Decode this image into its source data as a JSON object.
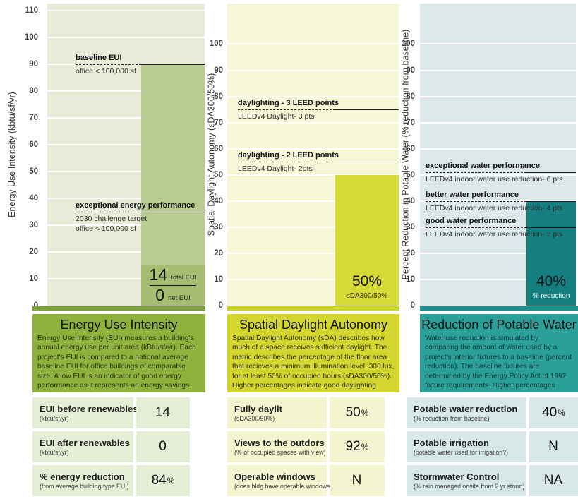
{
  "chart_data": [
    {
      "type": "bar",
      "title": "Energy Use Intensity",
      "description": "Energy Use Intensity (EUI) measures a building's annual energy use per unit area (kBtu/sf/yr).  Each project's EUI is compared to a national average baseline EUI for office buildings of comparable size. A low EUI is an indicator of good energy performance as it represents an energy savings against the baseline.",
      "ylabel": "Energy Use Intensity (kbtu/sf/yr)",
      "ylim": [
        0,
        110
      ],
      "tick_step": 10,
      "y_effective_max": 112.5,
      "grid": true,
      "bar": {
        "value": 90,
        "fraction_top": 15,
        "fraction": [
          {
            "num": "14",
            "unit": "total EUI"
          },
          {
            "num": "0",
            "unit": "net EUI"
          }
        ]
      },
      "reference_lines": [
        {
          "value": 90,
          "label": "baseline EUI",
          "sublabels": [
            "office < 100,000 sf"
          ]
        },
        {
          "value": 35,
          "label": "exceptional energy performance",
          "sublabels": [
            "2030 challenge target",
            "office < 100,000 sf"
          ]
        }
      ],
      "table": [
        {
          "label": "EUI before renewables",
          "sublabel": "(kbtu/sf/yr)",
          "value": "14",
          "suffix": ""
        },
        {
          "label": "EUI after renewables",
          "sublabel": "(kbtu/sf/yr)",
          "value": "0",
          "suffix": ""
        },
        {
          "label": "% energy reduction",
          "sublabel": "(from average building type EUI)",
          "value": "84",
          "suffix": "%"
        }
      ],
      "colors": {
        "plot_bg": "#e8ebd8",
        "grid": "#ffffff",
        "bar": "#b9cb90",
        "bar_box": "#a6bd72",
        "axis_strip": "#7ba23a",
        "title_bg": "#8fb23d",
        "title_text": "#121212",
        "body_text": "#2a330f",
        "table_bg": "#e5eed5"
      }
    },
    {
      "type": "bar",
      "title": "Spatial Daylight Autonomy",
      "description": "Spatial Daylight Autonomy (sDA) describes how much of a space receives sufficient daylight.  The metric describes the percentage of the floor area that recieves a minimum illumination level, 300 lux, for at least 50% of occupied hours (sDA300/50%).  Higher percentages indicate good daylighting performance.",
      "ylabel": "Spatial Daylight Autonomy (sDA300/50%)",
      "ylim": [
        0,
        100
      ],
      "tick_step": 10,
      "y_effective_max": 115.5,
      "grid": true,
      "bar": {
        "value": 50,
        "caption_big": "50%",
        "caption_small": "sDA300/50%"
      },
      "reference_lines": [
        {
          "value": 75,
          "label": "daylighting - 3 LEED points",
          "sublabels": [
            "LEEDv4 Daylight- 3 pts"
          ]
        },
        {
          "value": 55,
          "label": "daylighting - 2 LEED points",
          "sublabels": [
            "LEEDv4 Daylight- 2pts"
          ]
        }
      ],
      "table": [
        {
          "label": "Fully daylit",
          "sublabel": "(sDA300/50%)",
          "value": "50",
          "suffix": "%"
        },
        {
          "label": "Views to the outdors",
          "sublabel": "(% of occupied spaces with view)",
          "value": "92",
          "suffix": "%"
        },
        {
          "label": "Operable windows",
          "sublabel": "(does bldg have operable windows?)",
          "value": "N",
          "suffix": ""
        }
      ],
      "colors": {
        "plot_bg": "#f6f7d7",
        "grid": "#ffffff",
        "bar": "#d6da34",
        "axis_strip": "#ccd42c",
        "title_bg": "#d4d630",
        "title_text": "#121212",
        "body_text": "#2f330c",
        "table_bg": "#f3f5cf",
        "caption_small_color": "#33330f"
      }
    },
    {
      "type": "bar",
      "title": "Reduction of Potable Water",
      "description": "Water use reduction is simulated by comparing the amount of water used by a project's interior fixtures to a baseline (percent reduction).  The baseline fixtures are determined by the Energy Policy Act of 1992 fixture requirements.  Higher percentages indicate good water performance.",
      "ylabel": "Percent Reduction in Potable Water (% reduction from baseline)",
      "ylim": [
        0,
        100
      ],
      "tick_step": 10,
      "y_effective_max": 115.5,
      "grid": true,
      "bar": {
        "value": 40,
        "caption_big": "40%",
        "caption_small": "% reduction"
      },
      "reference_lines": [
        {
          "value": 51,
          "label": "exceptional water performance",
          "sublabels": [
            "LEEDv4 indoor water use reduction- 6 pts"
          ]
        },
        {
          "value": 40,
          "label": "better water performance",
          "sublabels": [
            "LEEDv4 indoor water use reduction- 4 pts"
          ]
        },
        {
          "value": 30,
          "label": "good water performance",
          "sublabels": [
            "LEEDv4 indoor water use reduction- 2 pts"
          ]
        }
      ],
      "table": [
        {
          "label": "Potable water reduction",
          "sublabel": "(% reduction from baseline)",
          "value": "40",
          "suffix": "%"
        },
        {
          "label": "Potable irrigation",
          "sublabel": "(potable water used for irrigation?)",
          "value": "N",
          "suffix": ""
        },
        {
          "label": "Stormwater Control",
          "sublabel": "(% rain managed onsite  from 2 yr storm)",
          "value": "NA",
          "suffix": ""
        }
      ],
      "colors": {
        "plot_bg": "#dce8e9",
        "grid": "#ffffff",
        "bar": "#157e80",
        "axis_strip": "#1b918f",
        "title_bg": "#2ba099",
        "title_text": "#121212",
        "body_text": "#0d3838",
        "table_bg": "#d8e7e7",
        "caption_small_color": "#ffffff"
      }
    }
  ]
}
